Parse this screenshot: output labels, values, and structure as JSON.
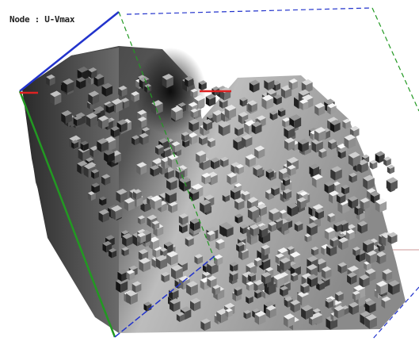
{
  "header": {
    "title": "Node : U-Vmax"
  }
}
